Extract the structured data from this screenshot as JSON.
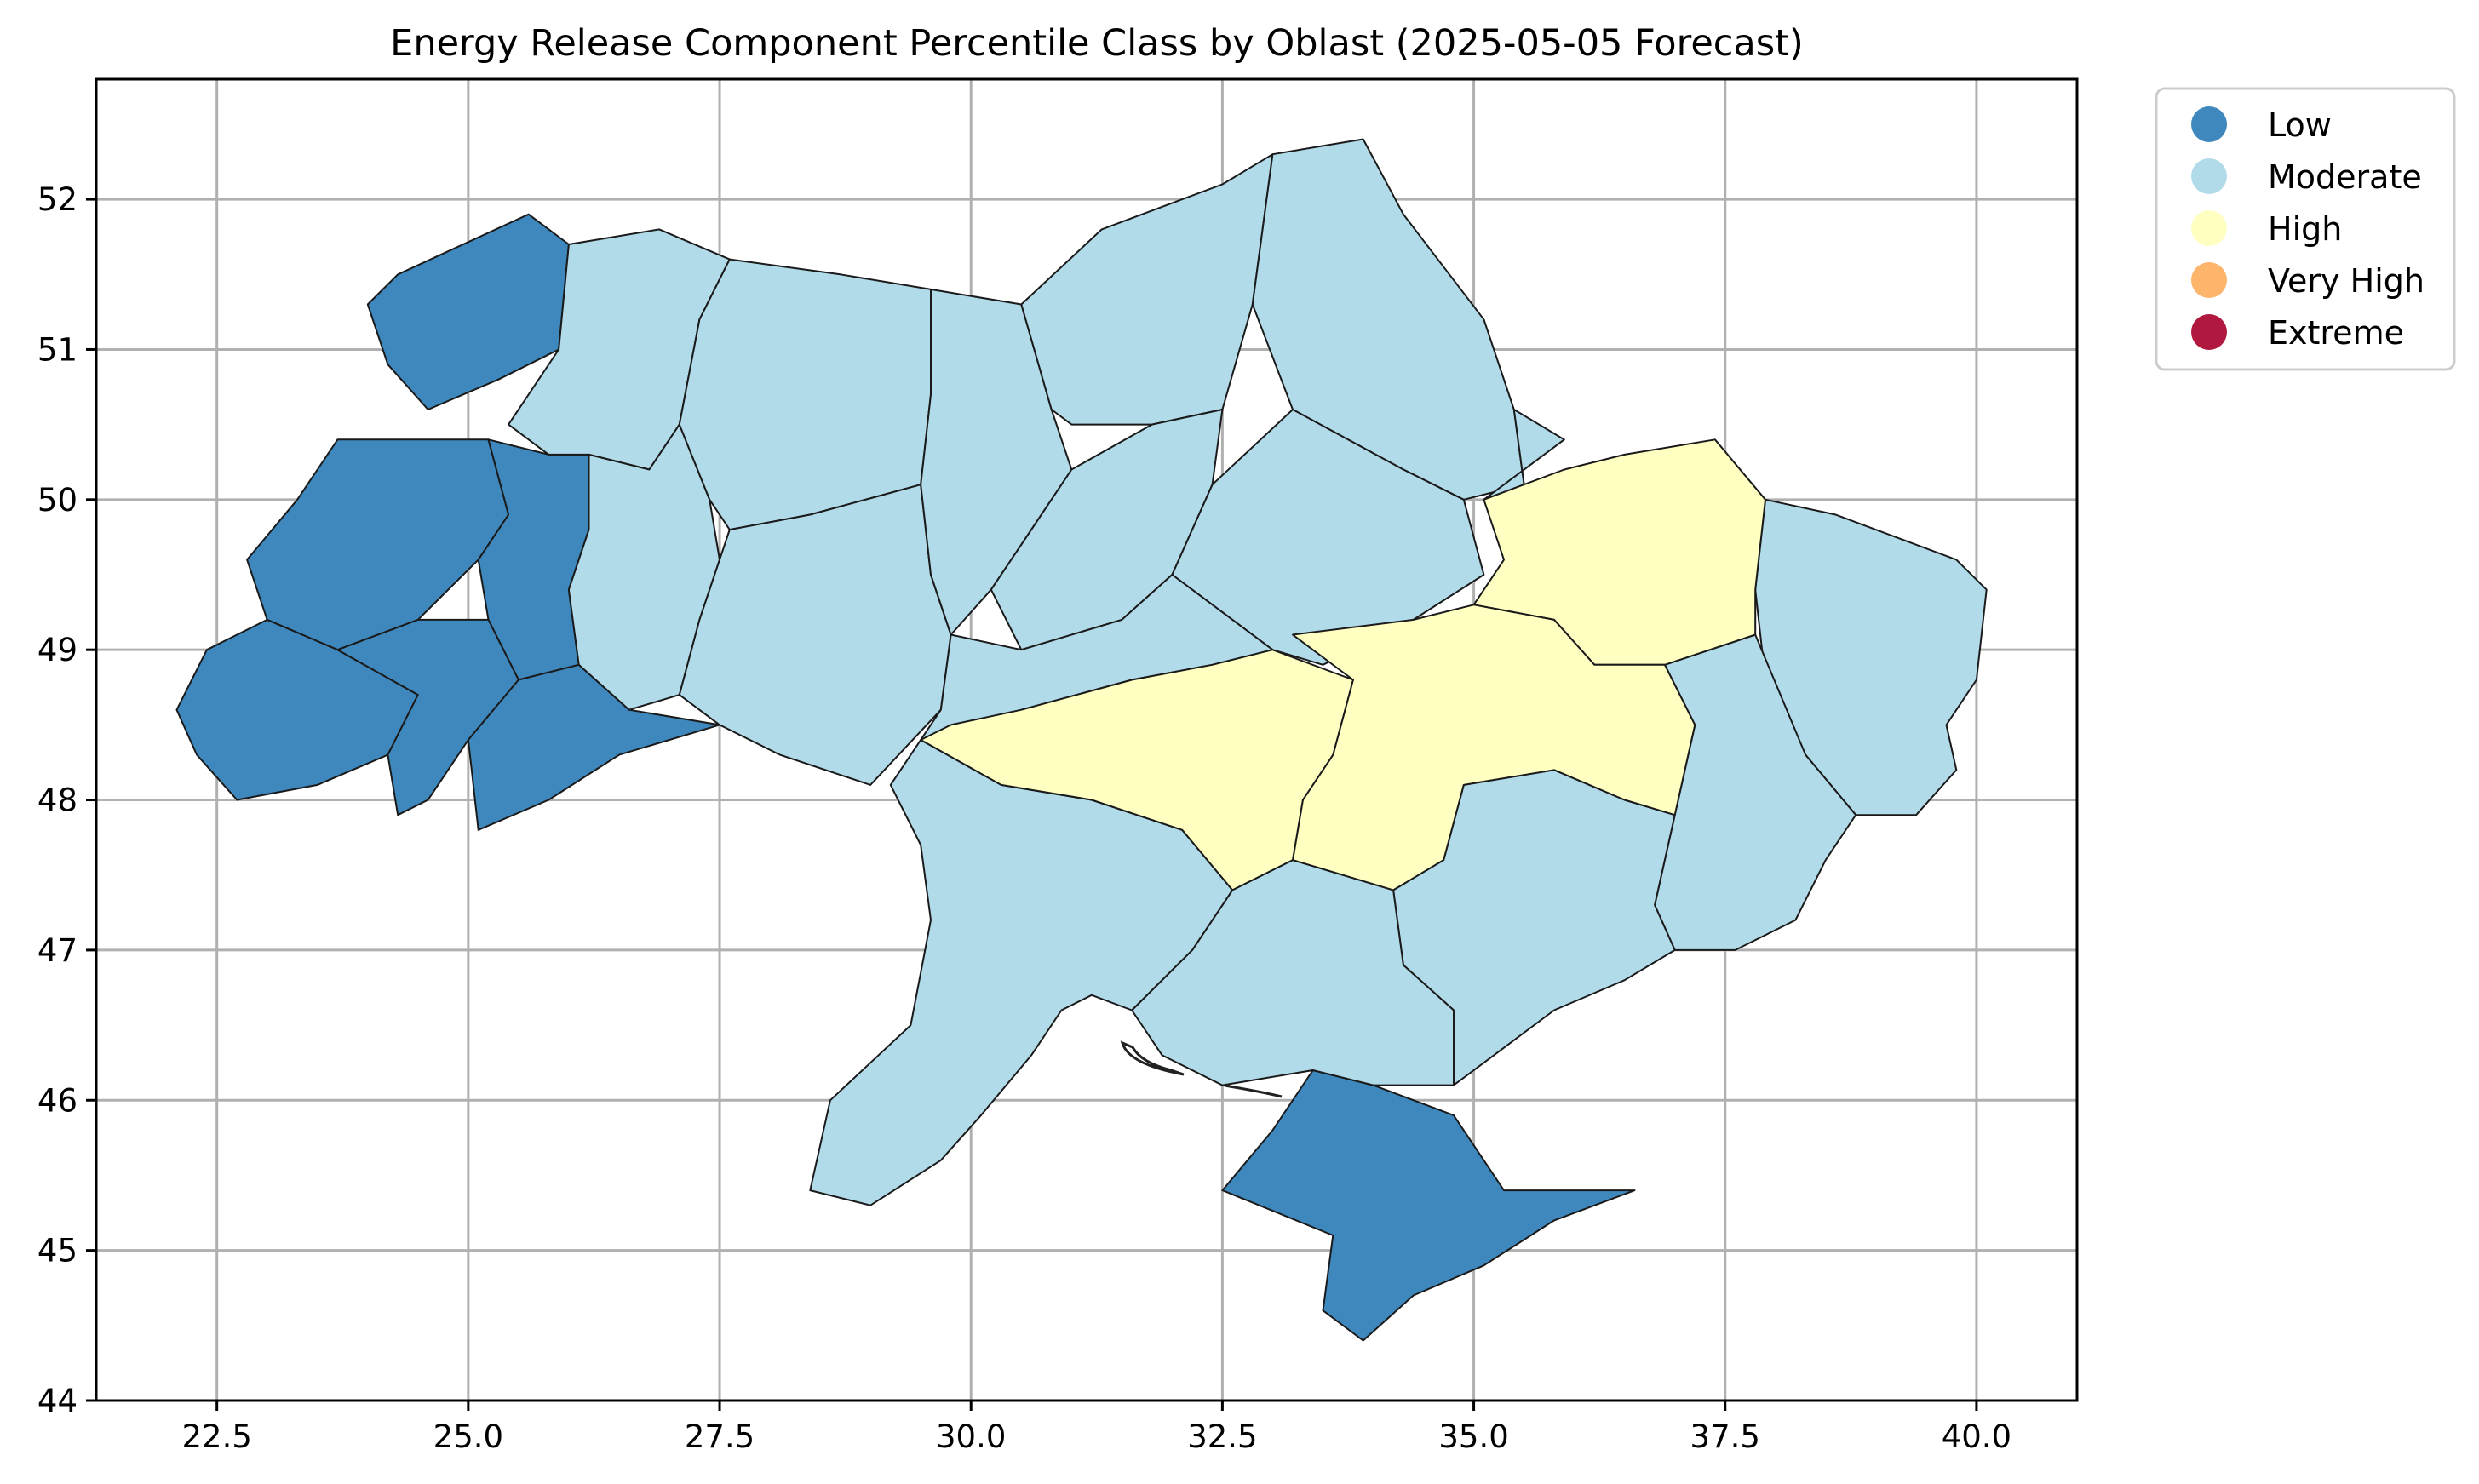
{
  "title": "Energy Release Component Percentile Class by Oblast (2025-05-05 Forecast)",
  "chart_data": {
    "type": "choropleth-map",
    "xlim": [
      21.3,
      41.0
    ],
    "ylim": [
      44.0,
      52.8
    ],
    "x_ticks": [
      "22.5",
      "25.0",
      "27.5",
      "30.0",
      "32.5",
      "35.0",
      "37.5",
      "40.0"
    ],
    "y_ticks": [
      "44",
      "45",
      "46",
      "47",
      "48",
      "49",
      "50",
      "51",
      "52"
    ],
    "grid": true,
    "legend_position": "outside-top-right",
    "legend": [
      {
        "label": "Low",
        "color": "#3f88bd"
      },
      {
        "label": "Moderate",
        "color": "#b2dbea"
      },
      {
        "label": "High",
        "color": "#ffffc2"
      },
      {
        "label": "Very High",
        "color": "#fdb46b"
      },
      {
        "label": "Extreme",
        "color": "#b0183f"
      }
    ],
    "regions": [
      {
        "class": "Low",
        "points": [
          [
            24.3,
            51.5
          ],
          [
            25.6,
            51.9
          ],
          [
            26.0,
            51.7
          ],
          [
            25.9,
            51.0
          ],
          [
            25.3,
            50.8
          ],
          [
            24.6,
            50.6
          ],
          [
            24.2,
            50.9
          ],
          [
            24.0,
            51.3
          ]
        ]
      },
      {
        "class": "Low",
        "points": [
          [
            23.7,
            50.4
          ],
          [
            24.5,
            50.4
          ],
          [
            25.2,
            50.4
          ],
          [
            25.4,
            49.9
          ],
          [
            25.1,
            49.6
          ],
          [
            24.5,
            49.2
          ],
          [
            23.7,
            49.0
          ],
          [
            23.0,
            49.2
          ],
          [
            22.8,
            49.6
          ],
          [
            23.3,
            50.0
          ]
        ]
      },
      {
        "class": "Low",
        "points": [
          [
            25.2,
            50.4
          ],
          [
            25.8,
            50.3
          ],
          [
            26.2,
            50.3
          ],
          [
            26.2,
            49.8
          ],
          [
            26.0,
            49.4
          ],
          [
            26.1,
            48.9
          ],
          [
            25.5,
            48.8
          ],
          [
            25.2,
            49.2
          ],
          [
            25.1,
            49.6
          ],
          [
            25.4,
            49.9
          ]
        ]
      },
      {
        "class": "Low",
        "points": [
          [
            22.4,
            49.0
          ],
          [
            23.0,
            49.2
          ],
          [
            23.7,
            49.0
          ],
          [
            24.5,
            48.7
          ],
          [
            24.2,
            48.3
          ],
          [
            23.5,
            48.1
          ],
          [
            22.7,
            48.0
          ],
          [
            22.3,
            48.3
          ],
          [
            22.1,
            48.6
          ]
        ]
      },
      {
        "class": "Low",
        "points": [
          [
            23.7,
            49.0
          ],
          [
            24.5,
            49.2
          ],
          [
            25.2,
            49.2
          ],
          [
            25.5,
            48.8
          ],
          [
            25.0,
            48.4
          ],
          [
            24.6,
            48.0
          ],
          [
            24.3,
            47.9
          ],
          [
            24.2,
            48.3
          ],
          [
            24.5,
            48.7
          ]
        ]
      },
      {
        "class": "Low",
        "points": [
          [
            25.0,
            48.4
          ],
          [
            25.5,
            48.8
          ],
          [
            26.1,
            48.9
          ],
          [
            26.6,
            48.6
          ],
          [
            27.5,
            48.5
          ],
          [
            26.5,
            48.3
          ],
          [
            25.8,
            48.0
          ],
          [
            25.1,
            47.8
          ]
        ]
      },
      {
        "class": "Low",
        "points": [
          [
            33.4,
            46.2
          ],
          [
            34.0,
            46.1
          ],
          [
            34.8,
            45.9
          ],
          [
            35.3,
            45.4
          ],
          [
            36.0,
            45.4
          ],
          [
            36.6,
            45.4
          ],
          [
            35.8,
            45.2
          ],
          [
            35.1,
            44.9
          ],
          [
            34.4,
            44.7
          ],
          [
            33.9,
            44.4
          ],
          [
            33.5,
            44.6
          ],
          [
            33.6,
            45.1
          ],
          [
            32.5,
            45.4
          ],
          [
            33.0,
            45.8
          ]
        ]
      },
      {
        "class": "Moderate",
        "points": [
          [
            25.9,
            51.0
          ],
          [
            26.0,
            51.7
          ],
          [
            26.9,
            51.8
          ],
          [
            27.6,
            51.6
          ],
          [
            27.3,
            51.2
          ],
          [
            27.1,
            50.5
          ],
          [
            26.8,
            50.2
          ],
          [
            26.2,
            50.3
          ],
          [
            25.8,
            50.3
          ],
          [
            25.4,
            50.5
          ]
        ]
      },
      {
        "class": "Moderate",
        "points": [
          [
            26.2,
            50.3
          ],
          [
            26.8,
            50.2
          ],
          [
            27.1,
            50.5
          ],
          [
            27.4,
            50.0
          ],
          [
            27.5,
            49.6
          ],
          [
            27.3,
            49.2
          ],
          [
            27.1,
            48.7
          ],
          [
            26.6,
            48.6
          ],
          [
            26.1,
            48.9
          ],
          [
            26.0,
            49.4
          ],
          [
            26.2,
            49.8
          ]
        ]
      },
      {
        "class": "Moderate",
        "points": [
          [
            27.3,
            51.2
          ],
          [
            27.6,
            51.6
          ],
          [
            28.7,
            51.5
          ],
          [
            29.6,
            51.4
          ],
          [
            29.6,
            50.7
          ],
          [
            29.5,
            50.1
          ],
          [
            28.4,
            49.9
          ],
          [
            27.6,
            49.8
          ],
          [
            27.4,
            50.0
          ],
          [
            27.1,
            50.5
          ]
        ]
      },
      {
        "class": "Moderate",
        "points": [
          [
            27.5,
            49.6
          ],
          [
            27.6,
            49.8
          ],
          [
            28.4,
            49.9
          ],
          [
            29.5,
            50.1
          ],
          [
            29.6,
            49.5
          ],
          [
            29.8,
            49.1
          ],
          [
            29.7,
            48.6
          ],
          [
            29.0,
            48.1
          ],
          [
            28.1,
            48.3
          ],
          [
            27.5,
            48.5
          ],
          [
            27.1,
            48.7
          ],
          [
            27.3,
            49.2
          ]
        ]
      },
      {
        "class": "Moderate",
        "points": [
          [
            29.6,
            51.4
          ],
          [
            30.5,
            51.3
          ],
          [
            30.8,
            50.6
          ],
          [
            31.0,
            50.2
          ],
          [
            30.6,
            49.8
          ],
          [
            30.2,
            49.4
          ],
          [
            29.8,
            49.1
          ],
          [
            29.6,
            49.5
          ],
          [
            29.5,
            50.1
          ],
          [
            29.6,
            50.7
          ]
        ]
      },
      {
        "class": "Moderate",
        "points": [
          [
            30.5,
            51.3
          ],
          [
            31.3,
            51.8
          ],
          [
            32.5,
            52.1
          ],
          [
            33.0,
            52.3
          ],
          [
            32.8,
            51.3
          ],
          [
            32.5,
            50.6
          ],
          [
            31.8,
            50.5
          ],
          [
            31.0,
            50.5
          ],
          [
            30.8,
            50.6
          ]
        ]
      },
      {
        "class": "Moderate",
        "points": [
          [
            33.0,
            52.3
          ],
          [
            33.9,
            52.4
          ],
          [
            34.3,
            51.9
          ],
          [
            35.1,
            51.2
          ],
          [
            35.4,
            50.6
          ],
          [
            35.5,
            50.1
          ],
          [
            34.9,
            50.0
          ],
          [
            34.3,
            50.2
          ],
          [
            33.2,
            50.6
          ],
          [
            32.8,
            51.3
          ]
        ]
      },
      {
        "class": "Moderate",
        "points": [
          [
            31.0,
            50.2
          ],
          [
            31.8,
            50.5
          ],
          [
            32.5,
            50.6
          ],
          [
            32.4,
            50.1
          ],
          [
            32.0,
            49.5
          ],
          [
            31.5,
            49.2
          ],
          [
            30.5,
            49.0
          ],
          [
            30.2,
            49.4
          ],
          [
            30.6,
            49.8
          ]
        ]
      },
      {
        "class": "Moderate",
        "points": [
          [
            32.4,
            50.1
          ],
          [
            33.2,
            50.6
          ],
          [
            34.3,
            50.2
          ],
          [
            34.9,
            50.0
          ],
          [
            35.1,
            49.5
          ],
          [
            34.4,
            49.2
          ],
          [
            33.5,
            48.9
          ],
          [
            33.0,
            49.0
          ],
          [
            32.0,
            49.5
          ]
        ]
      },
      {
        "class": "Moderate",
        "points": [
          [
            35.5,
            50.1
          ],
          [
            35.4,
            50.6
          ],
          [
            35.9,
            50.4
          ],
          [
            35.1,
            50.0
          ]
        ]
      },
      {
        "class": "Moderate",
        "points": [
          [
            37.9,
            50.0
          ],
          [
            38.6,
            49.9
          ],
          [
            39.8,
            49.6
          ],
          [
            40.1,
            49.4
          ],
          [
            40.0,
            48.8
          ],
          [
            39.7,
            48.5
          ],
          [
            39.8,
            48.2
          ],
          [
            39.4,
            47.9
          ],
          [
            38.8,
            47.9
          ],
          [
            38.3,
            48.3
          ],
          [
            37.9,
            48.8
          ],
          [
            37.8,
            49.4
          ]
        ]
      },
      {
        "class": "Moderate",
        "points": [
          [
            36.9,
            48.9
          ],
          [
            37.8,
            49.1
          ],
          [
            38.3,
            48.3
          ],
          [
            38.8,
            47.9
          ],
          [
            38.5,
            47.6
          ],
          [
            38.2,
            47.2
          ],
          [
            37.6,
            47.0
          ],
          [
            37.0,
            47.0
          ],
          [
            36.8,
            47.3
          ],
          [
            37.0,
            47.9
          ],
          [
            37.2,
            48.5
          ]
        ]
      },
      {
        "class": "Moderate",
        "points": [
          [
            34.9,
            48.1
          ],
          [
            35.8,
            48.2
          ],
          [
            36.5,
            48.0
          ],
          [
            37.0,
            47.9
          ],
          [
            36.8,
            47.3
          ],
          [
            37.0,
            47.0
          ],
          [
            36.5,
            46.8
          ],
          [
            35.8,
            46.6
          ],
          [
            35.2,
            46.3
          ],
          [
            34.8,
            46.1
          ],
          [
            34.8,
            46.6
          ],
          [
            34.3,
            46.9
          ],
          [
            34.2,
            47.4
          ],
          [
            34.7,
            47.6
          ]
        ]
      },
      {
        "class": "Moderate",
        "points": [
          [
            33.2,
            47.6
          ],
          [
            34.2,
            47.4
          ],
          [
            34.3,
            46.9
          ],
          [
            34.8,
            46.6
          ],
          [
            34.8,
            46.1
          ],
          [
            34.0,
            46.1
          ],
          [
            33.4,
            46.2
          ],
          [
            32.5,
            46.1
          ],
          [
            31.9,
            46.3
          ],
          [
            31.6,
            46.6
          ],
          [
            32.2,
            47.0
          ],
          [
            32.6,
            47.4
          ]
        ]
      },
      {
        "class": "Moderate",
        "points": [
          [
            29.5,
            48.4
          ],
          [
            30.3,
            48.1
          ],
          [
            31.2,
            48.0
          ],
          [
            32.1,
            47.8
          ],
          [
            32.6,
            47.4
          ],
          [
            32.2,
            47.0
          ],
          [
            31.6,
            46.6
          ],
          [
            31.2,
            46.7
          ],
          [
            30.9,
            46.6
          ],
          [
            30.6,
            46.3
          ],
          [
            30.1,
            45.9
          ],
          [
            29.7,
            45.6
          ],
          [
            29.0,
            45.3
          ],
          [
            28.4,
            45.4
          ],
          [
            28.6,
            46.0
          ],
          [
            29.4,
            46.5
          ],
          [
            29.6,
            47.2
          ],
          [
            29.5,
            47.7
          ],
          [
            29.2,
            48.1
          ]
        ]
      },
      {
        "class": "Moderate",
        "points": [
          [
            29.7,
            48.6
          ],
          [
            29.8,
            49.1
          ],
          [
            30.5,
            49.0
          ],
          [
            31.5,
            49.2
          ],
          [
            32.0,
            49.5
          ],
          [
            33.0,
            49.0
          ],
          [
            32.4,
            48.9
          ],
          [
            31.6,
            48.8
          ],
          [
            30.5,
            48.6
          ],
          [
            29.9,
            48.4
          ],
          [
            29.5,
            48.4
          ]
        ]
      },
      {
        "class": "High",
        "points": [
          [
            35.1,
            50.0
          ],
          [
            35.9,
            50.2
          ],
          [
            36.5,
            50.3
          ],
          [
            37.4,
            50.4
          ],
          [
            37.9,
            50.0
          ],
          [
            37.8,
            49.4
          ],
          [
            37.8,
            49.1
          ],
          [
            36.9,
            48.9
          ],
          [
            36.2,
            48.9
          ],
          [
            35.8,
            49.2
          ],
          [
            35.0,
            49.3
          ],
          [
            35.3,
            49.6
          ],
          [
            35.1,
            50.0
          ]
        ]
      },
      {
        "class": "High",
        "points": [
          [
            33.2,
            49.1
          ],
          [
            34.4,
            49.2
          ],
          [
            35.0,
            49.3
          ],
          [
            35.8,
            49.2
          ],
          [
            36.2,
            48.9
          ],
          [
            36.9,
            48.9
          ],
          [
            37.2,
            48.5
          ],
          [
            37.0,
            47.9
          ],
          [
            36.5,
            48.0
          ],
          [
            35.8,
            48.2
          ],
          [
            34.9,
            48.1
          ],
          [
            34.7,
            47.6
          ],
          [
            34.2,
            47.4
          ],
          [
            33.2,
            47.6
          ],
          [
            33.3,
            48.0
          ],
          [
            33.6,
            48.3
          ],
          [
            33.8,
            48.8
          ]
        ]
      },
      {
        "class": "High",
        "points": [
          [
            29.8,
            48.5
          ],
          [
            30.5,
            48.6
          ],
          [
            31.6,
            48.8
          ],
          [
            32.4,
            48.9
          ],
          [
            33.0,
            49.0
          ],
          [
            33.8,
            48.8
          ],
          [
            33.6,
            48.3
          ],
          [
            33.3,
            48.0
          ],
          [
            33.2,
            47.6
          ],
          [
            32.6,
            47.4
          ],
          [
            32.1,
            47.8
          ],
          [
            31.2,
            48.0
          ],
          [
            30.3,
            48.1
          ],
          [
            29.5,
            48.4
          ]
        ]
      }
    ]
  }
}
